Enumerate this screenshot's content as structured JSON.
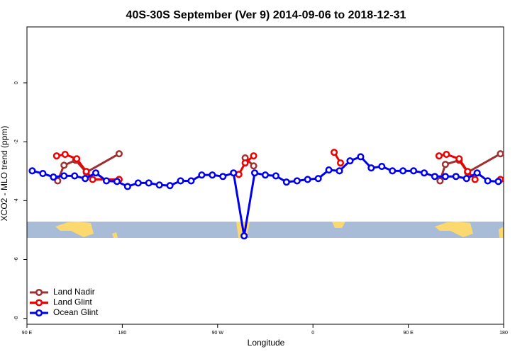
{
  "chart_data": {
    "type": "line",
    "title": "40S-30S September (Ver 9)   2014-09-06 to 2018-12-31",
    "x_label": "Longitude",
    "y_label": "XCO2 - MLO trend (ppm)",
    "xlim": [
      90,
      540
    ],
    "ylim": [
      -8.2,
      1.9
    ],
    "xticks": [
      {
        "value": 90,
        "label": "90 E"
      },
      {
        "value": 180,
        "label": "180"
      },
      {
        "value": 270,
        "label": "90 W"
      },
      {
        "value": 360,
        "label": "0"
      },
      {
        "value": 450,
        "label": "90 E"
      },
      {
        "value": 540,
        "label": "180"
      }
    ],
    "yticks": [
      0,
      -2,
      -4,
      -6,
      -8
    ],
    "legend": "bottom-left",
    "series": [
      {
        "name": "Land Nadir",
        "color": "#a03030",
        "x": [
          119,
          125,
          136,
          146,
          177,
          null,
          296,
          304,
          null,
          480,
          485,
          498,
          506,
          537
        ],
        "values": [
          -3.33,
          -2.8,
          -2.63,
          -3.04,
          -2.41,
          null,
          -2.55,
          -2.82,
          null,
          -3.33,
          -2.77,
          -2.63,
          -3.04,
          -2.41
        ]
      },
      {
        "name": "Land Glint",
        "color": "#ee0000",
        "x": [
          118,
          126,
          137,
          146,
          152,
          177,
          null,
          290,
          296,
          304,
          null,
          380,
          386,
          null,
          479,
          486,
          498,
          506,
          513,
          null,
          537
        ],
        "values": [
          -2.48,
          -2.43,
          -2.58,
          -3.01,
          -3.28,
          -3.28,
          null,
          -3.11,
          -2.72,
          -2.48,
          null,
          -2.36,
          -2.72,
          null,
          -2.48,
          -2.43,
          -2.58,
          -3.01,
          -3.28,
          null,
          -3.28
        ]
      },
      {
        "name": "Ocean Glint",
        "color": "#0000ee",
        "x": [
          95,
          105,
          115,
          125,
          135,
          145,
          155,
          165,
          175,
          185,
          195,
          205,
          215,
          225,
          235,
          245,
          255,
          265,
          275,
          285,
          295,
          305,
          315,
          325,
          335,
          345,
          355,
          365,
          375,
          385,
          395,
          405,
          415,
          425,
          435,
          445,
          455,
          465,
          475,
          485,
          495,
          505,
          515,
          525,
          535
        ],
        "values": [
          -2.99,
          -3.08,
          -3.2,
          -3.16,
          -3.16,
          -3.25,
          -3.06,
          -3.33,
          -3.35,
          -3.52,
          -3.4,
          -3.4,
          -3.47,
          -3.49,
          -3.33,
          -3.33,
          -3.13,
          -3.13,
          -3.18,
          -3.06,
          -5.2,
          -3.06,
          -3.13,
          -3.16,
          -3.37,
          -3.33,
          -3.28,
          -3.25,
          -2.96,
          -2.99,
          -2.65,
          -2.51,
          -2.89,
          -2.84,
          -2.99,
          -2.99,
          -2.99,
          -3.06,
          -3.18,
          -3.18,
          -3.18,
          -3.25,
          -3.06,
          -3.33,
          -3.35
        ]
      }
    ]
  }
}
